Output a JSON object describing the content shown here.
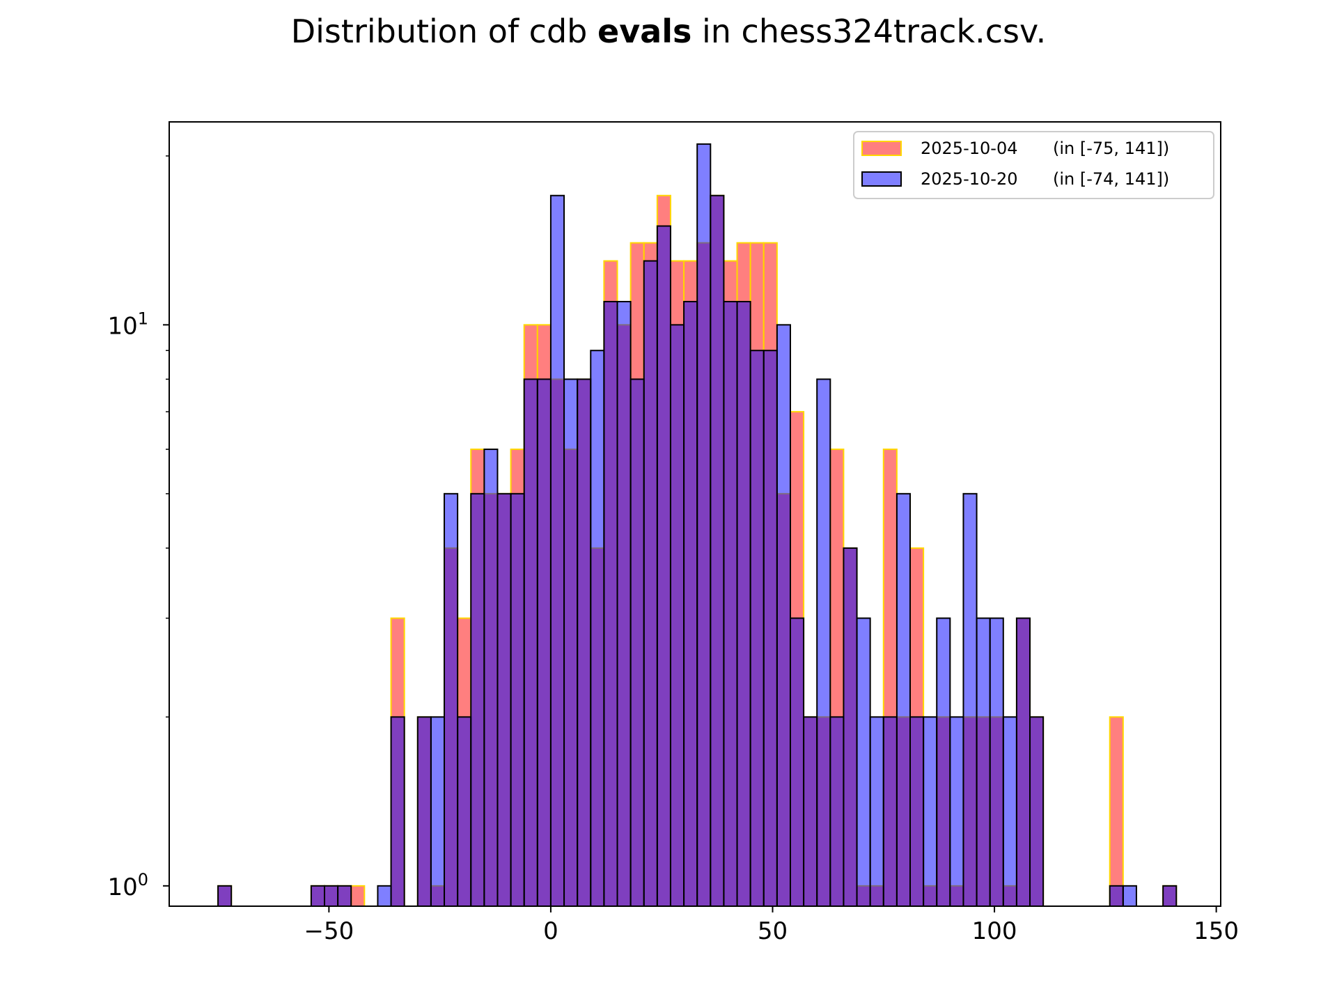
{
  "chart_data": {
    "type": "bar",
    "title": {
      "prefix": "Distribution of cdb ",
      "bold": "evals",
      "suffix": " in chess324track.csv."
    },
    "xlabel": "",
    "ylabel": "",
    "x_scale": "linear",
    "y_scale": "log",
    "xlim": [
      -86,
      151
    ],
    "ylim": [
      0.92,
      23
    ],
    "xticks": [
      -50,
      0,
      50,
      100,
      150
    ],
    "xtick_labels": [
      "−50",
      "0",
      "50",
      "100",
      "150"
    ],
    "yticks": [
      {
        "value": 1,
        "base": "10",
        "exp": "0"
      },
      {
        "value": 10,
        "base": "10",
        "exp": "1"
      }
    ],
    "grid": false,
    "legend_position": "top-right",
    "bin_start": -75,
    "bin_width": 3,
    "series": [
      {
        "name": "2025-10-04",
        "range_label": "(in [-75, 141])",
        "fill": "#ff0000",
        "edge": "#ffd700",
        "bins": [
          [
            -75,
            1
          ],
          [
            -54,
            1
          ],
          [
            -51,
            1
          ],
          [
            -48,
            1
          ],
          [
            -45,
            1
          ],
          [
            -36,
            3
          ],
          [
            -30,
            2
          ],
          [
            -27,
            1
          ],
          [
            -24,
            4
          ],
          [
            -21,
            3
          ],
          [
            -18,
            6
          ],
          [
            -15,
            5
          ],
          [
            -12,
            5
          ],
          [
            -9,
            6
          ],
          [
            -6,
            10
          ],
          [
            -3,
            10
          ],
          [
            0,
            8
          ],
          [
            3,
            6
          ],
          [
            6,
            8
          ],
          [
            9,
            4
          ],
          [
            12,
            13
          ],
          [
            15,
            10
          ],
          [
            18,
            14
          ],
          [
            21,
            14
          ],
          [
            24,
            17
          ],
          [
            27,
            13
          ],
          [
            30,
            13
          ],
          [
            33,
            14
          ],
          [
            36,
            17
          ],
          [
            39,
            13
          ],
          [
            42,
            14
          ],
          [
            45,
            14
          ],
          [
            48,
            14
          ],
          [
            51,
            5
          ],
          [
            54,
            7
          ],
          [
            57,
            2
          ],
          [
            60,
            2
          ],
          [
            63,
            6
          ],
          [
            66,
            4
          ],
          [
            69,
            1
          ],
          [
            72,
            1
          ],
          [
            75,
            6
          ],
          [
            78,
            2
          ],
          [
            81,
            4
          ],
          [
            84,
            1
          ],
          [
            87,
            2
          ],
          [
            90,
            1
          ],
          [
            93,
            2
          ],
          [
            96,
            2
          ],
          [
            99,
            2
          ],
          [
            102,
            1
          ],
          [
            105,
            3
          ],
          [
            108,
            2
          ],
          [
            126,
            2
          ],
          [
            138,
            1
          ]
        ]
      },
      {
        "name": "2025-10-20",
        "range_label": "(in [-74, 141])",
        "fill": "#0000ff",
        "edge": "#000000",
        "bins": [
          [
            -75,
            1
          ],
          [
            -54,
            1
          ],
          [
            -51,
            1
          ],
          [
            -48,
            1
          ],
          [
            -39,
            1
          ],
          [
            -36,
            2
          ],
          [
            -30,
            2
          ],
          [
            -27,
            2
          ],
          [
            -24,
            5
          ],
          [
            -21,
            2
          ],
          [
            -18,
            5
          ],
          [
            -15,
            6
          ],
          [
            -12,
            5
          ],
          [
            -9,
            5
          ],
          [
            -6,
            8
          ],
          [
            -3,
            8
          ],
          [
            0,
            17
          ],
          [
            3,
            8
          ],
          [
            6,
            8
          ],
          [
            9,
            9
          ],
          [
            12,
            11
          ],
          [
            15,
            11
          ],
          [
            18,
            8
          ],
          [
            21,
            13
          ],
          [
            24,
            15
          ],
          [
            27,
            10
          ],
          [
            30,
            11
          ],
          [
            33,
            21
          ],
          [
            36,
            17
          ],
          [
            39,
            11
          ],
          [
            42,
            11
          ],
          [
            45,
            9
          ],
          [
            48,
            9
          ],
          [
            51,
            10
          ],
          [
            54,
            3
          ],
          [
            57,
            2
          ],
          [
            60,
            8
          ],
          [
            63,
            2
          ],
          [
            66,
            4
          ],
          [
            69,
            3
          ],
          [
            72,
            2
          ],
          [
            75,
            2
          ],
          [
            78,
            5
          ],
          [
            81,
            2
          ],
          [
            84,
            2
          ],
          [
            87,
            3
          ],
          [
            90,
            2
          ],
          [
            93,
            5
          ],
          [
            96,
            3
          ],
          [
            99,
            3
          ],
          [
            102,
            2
          ],
          [
            105,
            3
          ],
          [
            108,
            2
          ],
          [
            126,
            1
          ],
          [
            129,
            1
          ],
          [
            138,
            1
          ]
        ]
      }
    ]
  }
}
